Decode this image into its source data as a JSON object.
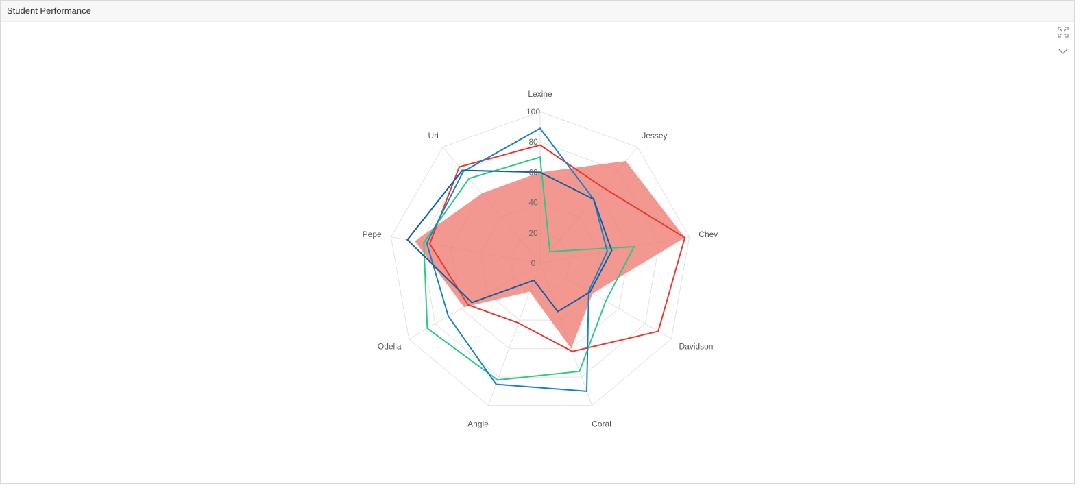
{
  "panel": {
    "title": "Student Performance"
  },
  "toolbar": {
    "expand_icon": "expand-icon",
    "collapse_icon": "chevron-down-icon"
  },
  "chart_data": {
    "type": "radar",
    "categories": [
      "Lexine",
      "Jessey",
      "Chev",
      "Davidson",
      "Coral",
      "Angie",
      "Odella",
      "Pepe",
      "Uri"
    ],
    "rlim": [
      0,
      100
    ],
    "ticks": [
      0,
      20,
      40,
      60,
      80,
      100
    ],
    "grid": true,
    "series": [
      {
        "color": "#ef7b72",
        "style": "area",
        "values": [
          60,
          88,
          97,
          40,
          60,
          20,
          58,
          84,
          60
        ]
      },
      {
        "color": "#e8392e",
        "style": "line",
        "values": [
          78,
          65,
          97,
          90,
          62,
          42,
          55,
          74,
          83
        ]
      },
      {
        "color": "#2dc985",
        "style": "line",
        "values": [
          70,
          10,
          63,
          50,
          76,
          82,
          86,
          78,
          73
        ]
      },
      {
        "color": "#1a82c4",
        "style": "line",
        "values": [
          89,
          55,
          45,
          37,
          90,
          85,
          70,
          76,
          79
        ]
      },
      {
        "color": "#115f9e",
        "style": "line",
        "values": [
          60,
          55,
          48,
          38,
          34,
          12,
          52,
          89,
          80
        ]
      }
    ]
  }
}
